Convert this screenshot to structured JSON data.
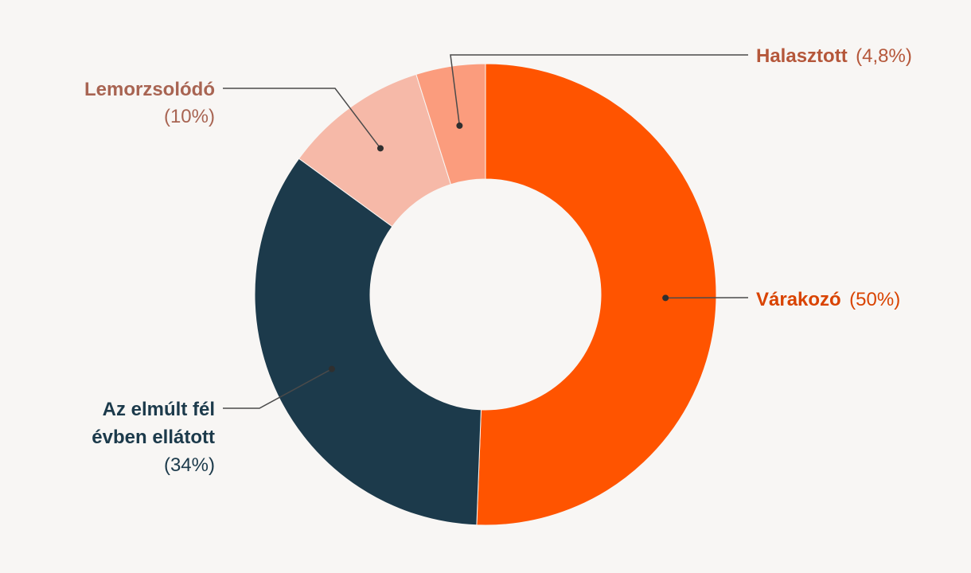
{
  "chart_data": {
    "type": "pie",
    "variant": "donut",
    "title": "",
    "slices": [
      {
        "name": "Várakozó",
        "value": 50,
        "pct_label": "(50%)",
        "color": "#ff5400",
        "label_color": "#d94300"
      },
      {
        "name": "Az elmúlt fél évben ellátott",
        "name_lines": [
          "Az elmúlt fél",
          "évben ellátott"
        ],
        "value": 34,
        "pct_label": "(34%)",
        "color": "#1c3a4b",
        "label_color": "#1c3a4b"
      },
      {
        "name": "Lemorzsolódó",
        "value": 10,
        "pct_label": "(10%)",
        "color": "#f6b9a8",
        "label_color": "#a86452"
      },
      {
        "name": "Halasztott",
        "value": 4.8,
        "pct_label": "(4,8%)",
        "color": "#fb9c7d",
        "label_color": "#b5573a"
      }
    ],
    "legend": "none",
    "labels": "callouts"
  }
}
